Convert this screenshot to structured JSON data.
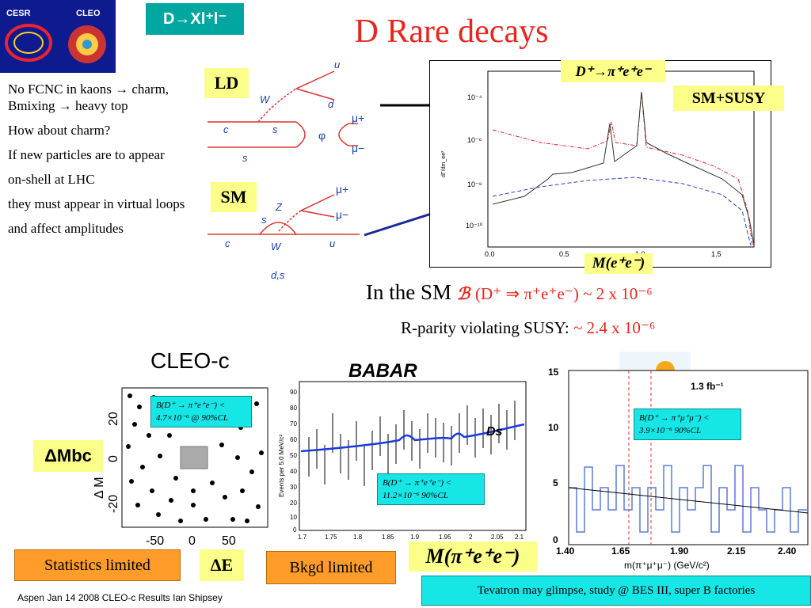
{
  "logos": {
    "cesr": "CESR",
    "cleo": "CLEO"
  },
  "header": {
    "tag": "D→Xl⁺l⁻",
    "title": "D Rare decays"
  },
  "bullets": [
    "No FCNC in kaons → charm,",
    "Bmixing → heavy top",
    "How about charm?",
    "If new particles are to appear",
    "on-shell at LHC",
    "they must appear in virtual loops",
    "and affect amplitudes"
  ],
  "feynman": {
    "ld_label": "LD",
    "sm_label": "SM",
    "ld_particles": {
      "u": "u",
      "dbar": "d",
      "W": "W",
      "c": "c",
      "s": "s",
      "sbar": "s",
      "phi": "φ",
      "mu_plus": "μ+",
      "mu_minus": "μ−"
    },
    "sm_particles": {
      "mu_plus": "μ+",
      "mu_minus": "μ−",
      "Z": "Z",
      "s": "s",
      "c": "c",
      "W": "W",
      "u": "u",
      "dsbar": "d,s"
    }
  },
  "spectrum_plot": {
    "decay_label": "D⁺→π⁺e⁺e⁻",
    "susy_label": "SM+SUSY",
    "x_label": "M(e⁺e⁻)",
    "y_label": "dΓ/dm_ee²",
    "x_ticks": [
      "0.0",
      "0.5",
      "1.0",
      "1.5"
    ],
    "y_ticks": [
      "10⁻⁴",
      "10⁻⁶",
      "10⁻⁸",
      "10⁻¹⁰"
    ]
  },
  "predictions": {
    "in_sm_label": "In the SM",
    "in_sm_value": "(D⁺ ⇒ π⁺e⁺e⁻) ~ 2 x 10⁻⁶",
    "rpv_label": "R-parity violating SUSY:",
    "rpv_value": "~ 2.4 x 10⁻⁶"
  },
  "cleo": {
    "title": "CLEO-c",
    "badge_mbc": "ΔMbc",
    "badge_de": "ΔE",
    "limit": "B(D⁺ → π⁺e⁺e⁻) < 4.7×10⁻⁶ @ 90%CL",
    "y_axis": "Δ M",
    "y_ticks": [
      "20",
      "0",
      "-20"
    ],
    "x_ticks": [
      "-50",
      "0",
      "50"
    ]
  },
  "babar": {
    "logo": "BABAR",
    "y_label": "Events per 5.0 MeV/c²",
    "limit": "B(D⁺ → π⁺e⁺e⁻) < 11.2×10⁻⁶ 90%CL",
    "y_ticks": [
      "90",
      "80",
      "70",
      "60",
      "50",
      "40",
      "30",
      "20",
      "10",
      "0"
    ],
    "x_ticks": [
      "1.7",
      "1.75",
      "1.8",
      "1.85",
      "1.9",
      "1.95",
      "2",
      "2.05",
      "2.1"
    ],
    "ds_label": "Ds"
  },
  "d0": {
    "lumi": "1.3 fb⁻¹",
    "limit": "B(D⁺ → π⁺μ⁺μ⁻) < 3.9×10⁻⁶ 90%CL",
    "x_label": "m(π⁺μ⁺μ⁻) (GeV/c²)",
    "x_ticks": [
      "1.40",
      "1.65",
      "1.90",
      "2.15",
      "2.40"
    ],
    "y_ticks": [
      "15",
      "10",
      "5",
      "0"
    ]
  },
  "bottom": {
    "stat_limited": "Statistics limited",
    "bkgd_limited": "Bkgd limited",
    "mass_label": "M(π⁺e⁺e⁻)",
    "tevatron": "Tevatron may glimpse, study @ BES III, super B factories",
    "footer": "Aspen  Jan 14 2008  CLEO-c Results  Ian Shipsey"
  }
}
